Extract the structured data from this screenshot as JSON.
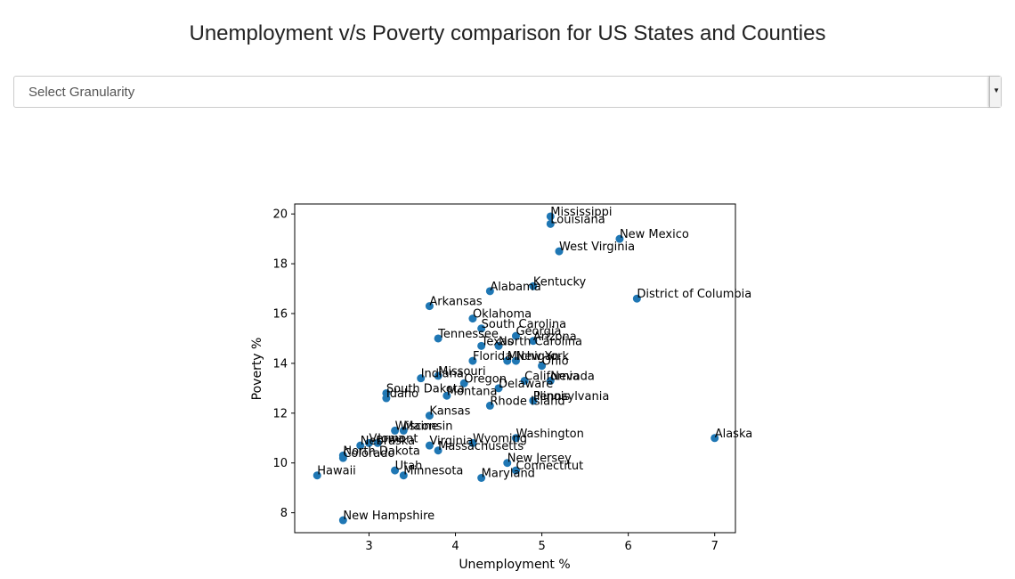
{
  "page": {
    "title": "Unemployment v/s Poverty comparison for US States and Counties",
    "granularity_select": {
      "selected": "Select Granularity"
    }
  },
  "chart_data": {
    "type": "scatter",
    "title": "",
    "xlabel": "Unemployment %",
    "ylabel": "Poverty %",
    "xlim": [
      2.14,
      7.24
    ],
    "ylim": [
      7.2,
      20.4
    ],
    "xticks": [
      3,
      4,
      5,
      6,
      7
    ],
    "yticks": [
      8,
      10,
      12,
      14,
      16,
      18,
      20
    ],
    "grid": false,
    "point_color": "#1f77b4",
    "points": [
      {
        "label": "Mississippi",
        "x": 5.1,
        "y": 19.9
      },
      {
        "label": "Louisiana",
        "x": 5.1,
        "y": 19.6
      },
      {
        "label": "New Mexico",
        "x": 5.9,
        "y": 19.0
      },
      {
        "label": "West Virginia",
        "x": 5.2,
        "y": 18.5
      },
      {
        "label": "Kentucky",
        "x": 4.9,
        "y": 17.1
      },
      {
        "label": "Alabama",
        "x": 4.4,
        "y": 16.9
      },
      {
        "label": "District of Columbia",
        "x": 6.1,
        "y": 16.6
      },
      {
        "label": "Arkansas",
        "x": 3.7,
        "y": 16.3
      },
      {
        "label": "Oklahoma",
        "x": 4.2,
        "y": 15.8
      },
      {
        "label": "South Carolina",
        "x": 4.3,
        "y": 15.4
      },
      {
        "label": "Tennessee",
        "x": 3.8,
        "y": 15.0
      },
      {
        "label": "Georgia",
        "x": 4.7,
        "y": 15.1
      },
      {
        "label": "Arizona",
        "x": 4.9,
        "y": 14.9
      },
      {
        "label": "Texas",
        "x": 4.3,
        "y": 14.7
      },
      {
        "label": "North Carolina",
        "x": 4.5,
        "y": 14.7
      },
      {
        "label": "Florida",
        "x": 4.2,
        "y": 14.1
      },
      {
        "label": "Michigan",
        "x": 4.6,
        "y": 14.1
      },
      {
        "label": "New York",
        "x": 4.7,
        "y": 14.1
      },
      {
        "label": "Ohio",
        "x": 5.0,
        "y": 13.9
      },
      {
        "label": "Missouri",
        "x": 3.8,
        "y": 13.5
      },
      {
        "label": "Indiana",
        "x": 3.6,
        "y": 13.4
      },
      {
        "label": "Oregon",
        "x": 4.1,
        "y": 13.2
      },
      {
        "label": "California",
        "x": 4.8,
        "y": 13.3
      },
      {
        "label": "Nevada",
        "x": 5.1,
        "y": 13.3
      },
      {
        "label": "Delaware",
        "x": 4.5,
        "y": 13.0
      },
      {
        "label": "South Dakota",
        "x": 3.2,
        "y": 12.8
      },
      {
        "label": "Idaho",
        "x": 3.2,
        "y": 12.6
      },
      {
        "label": "Montana",
        "x": 3.9,
        "y": 12.7
      },
      {
        "label": "Illinois",
        "x": 4.9,
        "y": 12.5
      },
      {
        "label": "Pennsylvania",
        "x": 4.9,
        "y": 12.5
      },
      {
        "label": "Rhode Island",
        "x": 4.4,
        "y": 12.3
      },
      {
        "label": "Kansas",
        "x": 3.7,
        "y": 11.9
      },
      {
        "label": "Wisconsin",
        "x": 3.3,
        "y": 11.3
      },
      {
        "label": "Maine",
        "x": 3.4,
        "y": 11.3
      },
      {
        "label": "Washington",
        "x": 4.7,
        "y": 11.0
      },
      {
        "label": "Alaska",
        "x": 7.0,
        "y": 11.0
      },
      {
        "label": "Vermont",
        "x": 3.0,
        "y": 10.8
      },
      {
        "label": "Iowa",
        "x": 3.1,
        "y": 10.8
      },
      {
        "label": "Nebraska",
        "x": 2.9,
        "y": 10.7
      },
      {
        "label": "Virginia",
        "x": 3.7,
        "y": 10.7
      },
      {
        "label": "Wyoming",
        "x": 4.2,
        "y": 10.8
      },
      {
        "label": "Massachusetts",
        "x": 3.8,
        "y": 10.5
      },
      {
        "label": "North Dakota",
        "x": 2.7,
        "y": 10.3
      },
      {
        "label": "Colorado",
        "x": 2.7,
        "y": 10.2
      },
      {
        "label": "New Jersey",
        "x": 4.6,
        "y": 10.0
      },
      {
        "label": "Utah",
        "x": 3.3,
        "y": 9.7
      },
      {
        "label": "Connectitut",
        "x": 4.7,
        "y": 9.7
      },
      {
        "label": "Hawaii",
        "x": 2.4,
        "y": 9.5
      },
      {
        "label": "Minnesota",
        "x": 3.4,
        "y": 9.5
      },
      {
        "label": "Maryland",
        "x": 4.3,
        "y": 9.4
      },
      {
        "label": "New Hampshire",
        "x": 2.7,
        "y": 7.7
      }
    ]
  }
}
